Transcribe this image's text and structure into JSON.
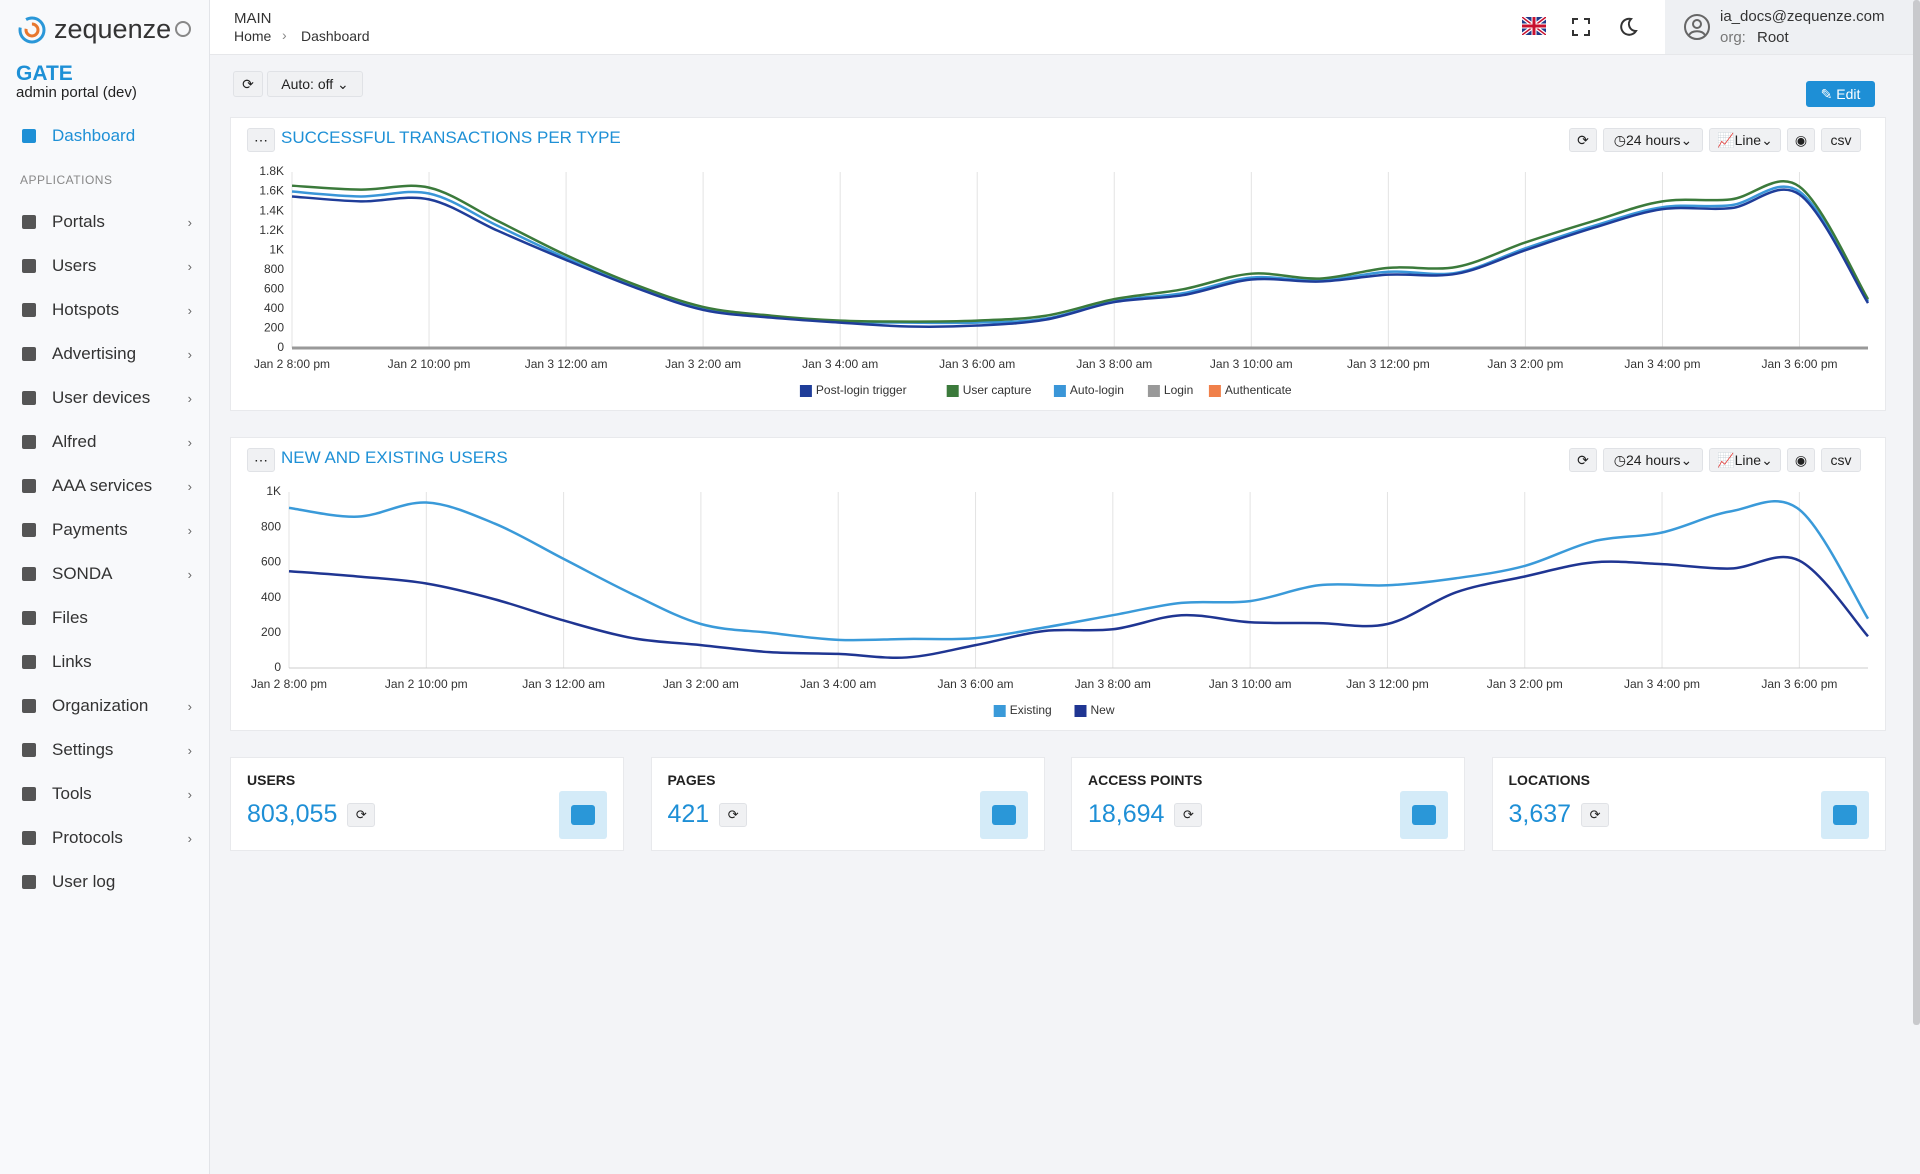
{
  "sidebar": {
    "brand": "zequenze",
    "app_title": "GATE",
    "app_subtitle": "admin portal (dev)",
    "active": "Dashboard",
    "section": "APPLICATIONS",
    "items": [
      {
        "label": "Portals",
        "submenu": true
      },
      {
        "label": "Users",
        "submenu": true
      },
      {
        "label": "Hotspots",
        "submenu": true
      },
      {
        "label": "Advertising",
        "submenu": true
      },
      {
        "label": "User devices",
        "submenu": true
      },
      {
        "label": "Alfred",
        "submenu": true
      },
      {
        "label": "AAA services",
        "submenu": true
      },
      {
        "label": "Payments",
        "submenu": true
      },
      {
        "label": "SONDA",
        "submenu": true
      },
      {
        "label": "Files",
        "submenu": false
      },
      {
        "label": "Links",
        "submenu": false
      },
      {
        "label": "Organization",
        "submenu": true
      },
      {
        "label": "Settings",
        "submenu": true
      },
      {
        "label": "Tools",
        "submenu": true
      },
      {
        "label": "Protocols",
        "submenu": true
      },
      {
        "label": "User log",
        "submenu": false
      }
    ]
  },
  "header": {
    "section": "MAIN",
    "breadcrumb": [
      "Home",
      "Dashboard"
    ],
    "user_email": "ia_docs@zequenze.com",
    "org_label": "org:",
    "org": "Root"
  },
  "toolbar": {
    "auto": "Auto: off",
    "edit": "Edit"
  },
  "charts": [
    {
      "type": "line",
      "title": "SUCCESSFUL TRANSACTIONS PER TYPE",
      "range": "24 hours",
      "mode": "Line",
      "export": "csv",
      "x": [
        0,
        1,
        2,
        3,
        4,
        5,
        6,
        7,
        8,
        9,
        10,
        11,
        12,
        13,
        14,
        15,
        16,
        17,
        18,
        19,
        20,
        21,
        22,
        23
      ],
      "xlim": [
        0,
        23
      ],
      "xticks": [
        {
          "value": 0,
          "label": "Jan 2 8:00 pm"
        },
        {
          "value": 2,
          "label": "Jan 2 10:00 pm"
        },
        {
          "value": 4,
          "label": "Jan 3 12:00 am"
        },
        {
          "value": 6,
          "label": "Jan 3 2:00 am"
        },
        {
          "value": 8,
          "label": "Jan 3 4:00 am"
        },
        {
          "value": 10,
          "label": "Jan 3 6:00 am"
        },
        {
          "value": 12,
          "label": "Jan 3 8:00 am"
        },
        {
          "value": 14,
          "label": "Jan 3 10:00 am"
        },
        {
          "value": 16,
          "label": "Jan 3 12:00 pm"
        },
        {
          "value": 18,
          "label": "Jan 3 2:00 pm"
        },
        {
          "value": 20,
          "label": "Jan 3 4:00 pm"
        },
        {
          "value": 22,
          "label": "Jan 3 6:00 pm"
        }
      ],
      "ylim": [
        0,
        1800
      ],
      "yticks": [
        0,
        200,
        400,
        600,
        800,
        {
          "value": 1000,
          "label": "1K"
        },
        {
          "value": 1200,
          "label": "1.2K"
        },
        {
          "value": 1400,
          "label": "1.4K"
        },
        {
          "value": 1600,
          "label": "1.6K"
        },
        {
          "value": 1800,
          "label": "1.8K"
        }
      ],
      "series": [
        {
          "name": "Post-login trigger",
          "color": "#1f3d99",
          "values": [
            1550,
            1500,
            1520,
            1200,
            900,
            620,
            390,
            310,
            260,
            220,
            230,
            290,
            470,
            540,
            700,
            680,
            750,
            760,
            1000,
            1230,
            1420,
            1430,
            1570,
            460
          ]
        },
        {
          "name": "User capture",
          "color": "#3b7a3b",
          "values": [
            1660,
            1620,
            1640,
            1300,
            950,
            650,
            420,
            330,
            280,
            270,
            280,
            330,
            500,
            600,
            760,
            710,
            820,
            830,
            1080,
            1300,
            1500,
            1520,
            1650,
            500
          ]
        },
        {
          "name": "Auto-login",
          "color": "#3a96d8",
          "values": [
            1600,
            1550,
            1580,
            1250,
            920,
            630,
            400,
            320,
            270,
            260,
            260,
            300,
            480,
            560,
            720,
            690,
            780,
            770,
            1020,
            1250,
            1440,
            1460,
            1600,
            480
          ]
        },
        {
          "name": "Login",
          "color": "#999999",
          "values": [
            0,
            0,
            0,
            0,
            0,
            0,
            0,
            0,
            0,
            0,
            0,
            0,
            0,
            0,
            0,
            0,
            0,
            0,
            0,
            0,
            0,
            0,
            0,
            0
          ]
        },
        {
          "name": "Authenticate",
          "color": "#f0804a",
          "values": [
            0,
            0,
            0,
            0,
            0,
            0,
            0,
            0,
            0,
            0,
            0,
            0,
            0,
            0,
            0,
            0,
            0,
            0,
            0,
            0,
            0,
            0,
            0,
            0
          ]
        }
      ]
    },
    {
      "type": "line",
      "title": "NEW AND EXISTING USERS",
      "range": "24 hours",
      "mode": "Line",
      "export": "csv",
      "x": [
        0,
        1,
        2,
        3,
        4,
        5,
        6,
        7,
        8,
        9,
        10,
        11,
        12,
        13,
        14,
        15,
        16,
        17,
        18,
        19,
        20,
        21,
        22,
        23
      ],
      "xlim": [
        0,
        23
      ],
      "xticks": [
        {
          "value": 0,
          "label": "Jan 2 8:00 pm"
        },
        {
          "value": 2,
          "label": "Jan 2 10:00 pm"
        },
        {
          "value": 4,
          "label": "Jan 3 12:00 am"
        },
        {
          "value": 6,
          "label": "Jan 3 2:00 am"
        },
        {
          "value": 8,
          "label": "Jan 3 4:00 am"
        },
        {
          "value": 10,
          "label": "Jan 3 6:00 am"
        },
        {
          "value": 12,
          "label": "Jan 3 8:00 am"
        },
        {
          "value": 14,
          "label": "Jan 3 10:00 am"
        },
        {
          "value": 16,
          "label": "Jan 3 12:00 pm"
        },
        {
          "value": 18,
          "label": "Jan 3 2:00 pm"
        },
        {
          "value": 20,
          "label": "Jan 3 4:00 pm"
        },
        {
          "value": 22,
          "label": "Jan 3 6:00 pm"
        }
      ],
      "ylim": [
        0,
        1000
      ],
      "yticks": [
        0,
        200,
        400,
        600,
        800,
        {
          "value": 1000,
          "label": "1K"
        }
      ],
      "series": [
        {
          "name": "Existing",
          "color": "#3a9ad9",
          "values": [
            910,
            860,
            940,
            820,
            620,
            420,
            250,
            200,
            160,
            165,
            170,
            230,
            300,
            370,
            380,
            470,
            470,
            510,
            580,
            720,
            770,
            890,
            900,
            280
          ]
        },
        {
          "name": "New",
          "color": "#1f3592",
          "values": [
            550,
            520,
            480,
            390,
            270,
            170,
            130,
            90,
            80,
            60,
            130,
            210,
            220,
            300,
            260,
            255,
            250,
            430,
            520,
            600,
            590,
            565,
            610,
            180
          ]
        }
      ]
    }
  ],
  "stats": [
    {
      "label": "USERS",
      "value": "803,055"
    },
    {
      "label": "PAGES",
      "value": "421"
    },
    {
      "label": "ACCESS POINTS",
      "value": "18,694"
    },
    {
      "label": "LOCATIONS",
      "value": "3,637"
    }
  ]
}
